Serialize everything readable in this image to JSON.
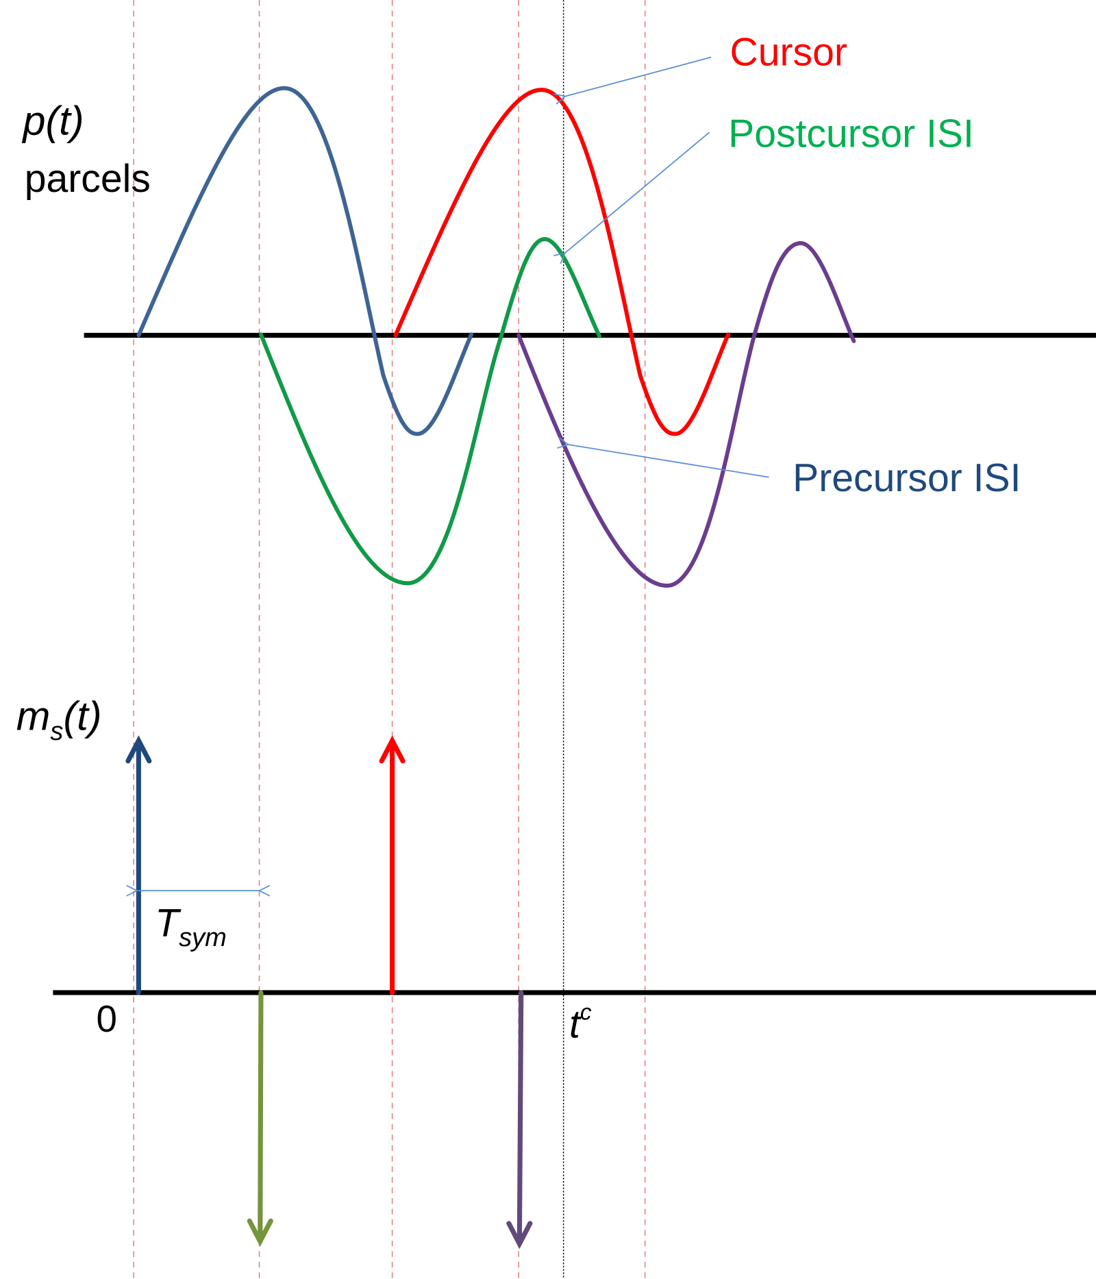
{
  "labels": {
    "p_symbol": "p",
    "p_arg": "(t)",
    "parcels": "parcels",
    "m_symbol": "m",
    "m_sub": "s",
    "m_arg": "(t)",
    "t_sym": "T",
    "t_sym_sub": "sym",
    "zero": "0",
    "t_c": "t",
    "t_c_sup": "c",
    "cursor": "Cursor",
    "postcursor": "Postcursor ISI",
    "precursor": "Precursor ISI"
  },
  "colors": {
    "precursor_pulse": "#3e6494",
    "cursor": "#ff0000",
    "postcursor": "#119a48",
    "trailing_pulse": "#6a3d8f",
    "precursor_label": "#1f497d",
    "postcursor_label": "#00b050",
    "annotation": "#5b8fd6",
    "grid_dashed": "#e08080",
    "impulse_up_blue": "#1f497d",
    "impulse_down_green": "#77933c",
    "impulse_down_purple": "#604a7b"
  }
}
